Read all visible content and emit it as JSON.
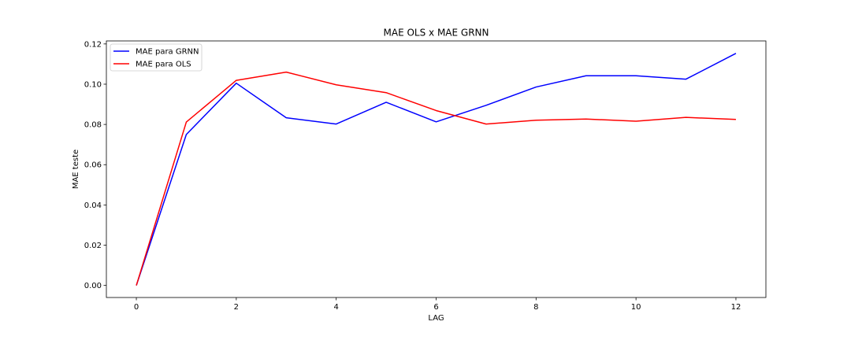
{
  "chart_data": {
    "type": "line",
    "title": "MAE OLS x MAE GRNN",
    "xlabel": "LAG",
    "ylabel": "MAE teste",
    "xlim": [
      -0.6,
      12.6
    ],
    "ylim": [
      -0.006,
      0.1215
    ],
    "xticks": [
      0,
      2,
      4,
      6,
      8,
      10,
      12
    ],
    "xtick_labels": [
      "0",
      "2",
      "4",
      "6",
      "8",
      "10",
      "12"
    ],
    "yticks": [
      0.0,
      0.02,
      0.04,
      0.06,
      0.08,
      0.1,
      0.12
    ],
    "ytick_labels": [
      "0.00",
      "0.02",
      "0.04",
      "0.06",
      "0.08",
      "0.10",
      "0.12"
    ],
    "grid": false,
    "legend_position": "top-left",
    "x": [
      0,
      1,
      2,
      3,
      4,
      5,
      6,
      7,
      8,
      9,
      10,
      11,
      12
    ],
    "series": [
      {
        "name": "MAE para GRNN",
        "color": "#0000ff",
        "values": [
          0.0,
          0.075,
          0.1005,
          0.0833,
          0.0802,
          0.091,
          0.0813,
          0.0895,
          0.0986,
          0.1042,
          0.1042,
          0.1025,
          0.1153
        ]
      },
      {
        "name": "MAE para OLS",
        "color": "#ff0000",
        "values": [
          0.0,
          0.0812,
          0.1019,
          0.106,
          0.0997,
          0.0958,
          0.0869,
          0.0802,
          0.0821,
          0.0827,
          0.0816,
          0.0835,
          0.0825
        ]
      }
    ]
  }
}
